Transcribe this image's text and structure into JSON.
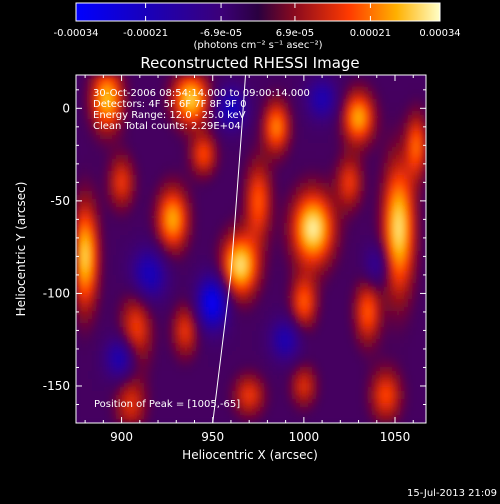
{
  "chart_data": {
    "type": "heatmap",
    "title": "Reconstructed RHESSI Image",
    "xlabel": "Heliocentric X (arcsec)",
    "ylabel": "Heliocentric Y (arcsec)",
    "xlim": [
      875,
      1067
    ],
    "ylim": [
      -170,
      18
    ],
    "x_ticks": [
      900,
      950,
      1000,
      1050
    ],
    "y_ticks": [
      0,
      -50,
      -100,
      -150
    ],
    "colorbar": {
      "range": [
        -0.00034,
        0.00034
      ],
      "tick_values": [
        -0.00034,
        -0.00021,
        -6.9e-05,
        6.9e-05,
        0.00021,
        0.00034
      ],
      "tick_labels": [
        "-0.00034",
        "-0.00021",
        "-6.9e-05",
        "6.9e-05",
        "0.00021",
        "0.00034"
      ],
      "units": "(photons cm⁻² s⁻¹ asec⁻²)"
    },
    "annotations": [
      "30-Oct-2006 08:54:14.000 to 09:00:14.000",
      "Detectors: 4F 5F 6F 7F 8F 9F 0",
      "Energy Range: 12.0 - 25.0 keV",
      "Clean    Total counts: 2.29E+04"
    ],
    "peak_label": "Position of Peak = [1005,-65]",
    "peak": [
      1005,
      -65
    ],
    "limb_curve": [
      [
        950,
        -170
      ],
      [
        955,
        -130
      ],
      [
        960,
        -90
      ],
      [
        963,
        -50
      ],
      [
        966,
        -10
      ],
      [
        968,
        18
      ]
    ],
    "timestamp": "15-Jul-2013 21:09",
    "grid": false,
    "blobs": [
      {
        "x": 880,
        "y": -80,
        "v": 0.9,
        "sx": 5,
        "sy": 20
      },
      {
        "x": 892,
        "y": 5,
        "v": 0.85,
        "sx": 6,
        "sy": 12
      },
      {
        "x": 900,
        "y": -40,
        "v": 0.5,
        "sx": 5,
        "sy": 10
      },
      {
        "x": 908,
        "y": -120,
        "v": 0.55,
        "sx": 6,
        "sy": 15
      },
      {
        "x": 905,
        "y": -160,
        "v": 0.45,
        "sx": 6,
        "sy": 10
      },
      {
        "x": 938,
        "y": 5,
        "v": 0.9,
        "sx": 7,
        "sy": 10
      },
      {
        "x": 928,
        "y": -60,
        "v": 0.8,
        "sx": 6,
        "sy": 12
      },
      {
        "x": 945,
        "y": -25,
        "v": 0.55,
        "sx": 5,
        "sy": 8
      },
      {
        "x": 935,
        "y": -120,
        "v": 0.5,
        "sx": 5,
        "sy": 10
      },
      {
        "x": 965,
        "y": -85,
        "v": 0.95,
        "sx": 7,
        "sy": 12
      },
      {
        "x": 975,
        "y": -50,
        "v": 0.6,
        "sx": 5,
        "sy": 15
      },
      {
        "x": 970,
        "y": -155,
        "v": 0.5,
        "sx": 6,
        "sy": 8
      },
      {
        "x": 985,
        "y": -10,
        "v": 0.7,
        "sx": 5,
        "sy": 10
      },
      {
        "x": 1005,
        "y": -65,
        "v": 1.0,
        "sx": 8,
        "sy": 14
      },
      {
        "x": 1000,
        "y": -105,
        "v": 0.6,
        "sx": 5,
        "sy": 10
      },
      {
        "x": 1000,
        "y": -150,
        "v": 0.45,
        "sx": 5,
        "sy": 8
      },
      {
        "x": 1030,
        "y": -5,
        "v": 0.8,
        "sx": 6,
        "sy": 10
      },
      {
        "x": 1025,
        "y": -40,
        "v": 0.5,
        "sx": 5,
        "sy": 10
      },
      {
        "x": 1035,
        "y": -110,
        "v": 0.6,
        "sx": 5,
        "sy": 12
      },
      {
        "x": 1052,
        "y": -65,
        "v": 0.95,
        "sx": 6,
        "sy": 25
      },
      {
        "x": 1045,
        "y": -155,
        "v": 0.55,
        "sx": 6,
        "sy": 10
      },
      {
        "x": 1062,
        "y": -20,
        "v": 0.6,
        "sx": 4,
        "sy": 12
      },
      {
        "x": 950,
        "y": -105,
        "v": -0.9,
        "sx": 6,
        "sy": 10
      },
      {
        "x": 915,
        "y": -90,
        "v": -0.6,
        "sx": 7,
        "sy": 10
      },
      {
        "x": 900,
        "y": -135,
        "v": -0.6,
        "sx": 6,
        "sy": 8
      },
      {
        "x": 990,
        "y": -125,
        "v": -0.5,
        "sx": 6,
        "sy": 8
      },
      {
        "x": 1010,
        "y": 5,
        "v": -0.5,
        "sx": 6,
        "sy": 8
      },
      {
        "x": 960,
        "y": 0,
        "v": -0.6,
        "sx": 6,
        "sy": 8
      },
      {
        "x": 1040,
        "y": -85,
        "v": -0.4,
        "sx": 5,
        "sy": 8
      }
    ]
  }
}
